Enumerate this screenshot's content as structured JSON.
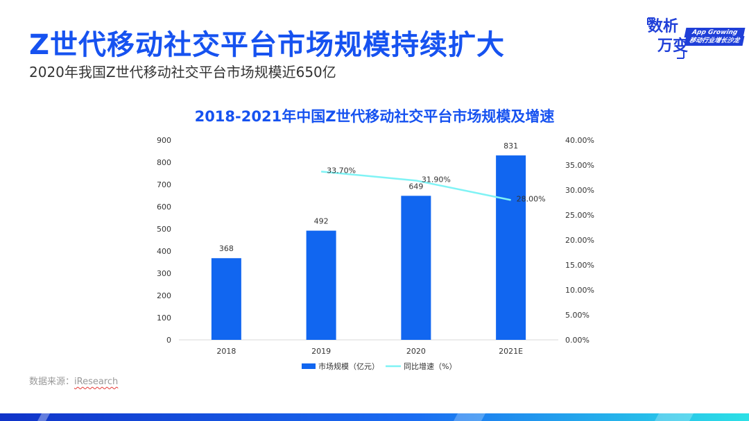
{
  "header": {
    "title": "Z世代移动社交平台市场规模持续扩大",
    "subtitle": "2020年我国Z世代移动社交平台市场规模近650亿"
  },
  "logo": {
    "line1": "数析",
    "line2": "万变",
    "tag1": "App Growing",
    "tag2": "移动行业增长沙龙"
  },
  "source": {
    "label": "数据来源：",
    "name": "iResearch"
  },
  "colors": {
    "accent": "#1652f0",
    "bar": "#1166f0",
    "line": "#7ff3f5",
    "footer_dark": "#1033c8",
    "footer_mid": "#1a6cf2",
    "footer_light": "#2ce0e6"
  },
  "chart_data": {
    "type": "bar",
    "title": "2018-2021年中国Z世代移动社交平台市场规模及增速",
    "categories": [
      "2018",
      "2019",
      "2020",
      "2021E"
    ],
    "series": [
      {
        "name": "市场规模（亿元）",
        "type": "bar",
        "axis": "left",
        "values": [
          368,
          492,
          649,
          831
        ],
        "labels": [
          "368",
          "492",
          "649",
          "831"
        ]
      },
      {
        "name": "同比增速（%）",
        "type": "line",
        "axis": "right",
        "values": [
          null,
          33.7,
          31.9,
          28.0
        ],
        "labels": [
          "",
          "33.70%",
          "31.90%",
          "28.00%"
        ]
      }
    ],
    "ylim": [
      0,
      900
    ],
    "yticks": [
      "0",
      "100",
      "200",
      "300",
      "400",
      "500",
      "600",
      "700",
      "800",
      "900"
    ],
    "y2lim": [
      0,
      40
    ],
    "y2ticks": [
      "0.00%",
      "5.00%",
      "10.00%",
      "15.00%",
      "20.00%",
      "25.00%",
      "30.00%",
      "35.00%",
      "40.00%"
    ],
    "grid": false,
    "legend": "bottom-center"
  }
}
